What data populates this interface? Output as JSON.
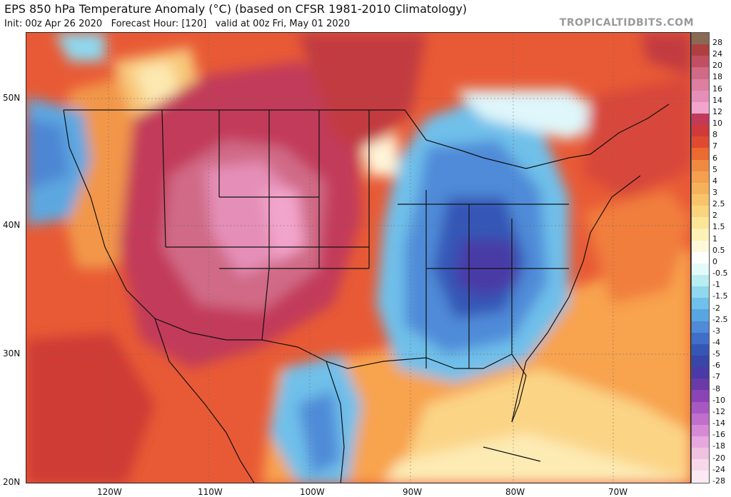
{
  "header": {
    "title": "EPS 850 hPa Temperature Anomaly (°C) (based on CFSR 1981-2010 Climatology)",
    "init": "Init: 00z Apr 26 2020",
    "forecast_hour": "Forecast Hour: [120]",
    "valid": "valid at 00z Fri, May 01 2020",
    "brand": "TROPICALTIDBITS.COM"
  },
  "map": {
    "lat_labels": [
      "50N",
      "40N",
      "30N",
      "20N"
    ],
    "lon_labels": [
      "120W",
      "110W",
      "100W",
      "90W",
      "80W",
      "70W"
    ],
    "regions": {
      "west_warm_core": "warm anomaly",
      "east_cold_core": "cold anomaly"
    }
  },
  "colorbar": {
    "labels": [
      "28",
      "24",
      "20",
      "18",
      "16",
      "14",
      "12",
      "10",
      "8",
      "7",
      "6",
      "5",
      "4",
      "3",
      "2.5",
      "2",
      "1.5",
      "1",
      "0.5",
      "0",
      "-0.5",
      "-1",
      "-1.5",
      "-2",
      "-2.5",
      "-3",
      "-4",
      "-5",
      "-6",
      "-7",
      "-8",
      "-10",
      "-12",
      "-14",
      "-16",
      "-18",
      "-20",
      "-24",
      "-28"
    ],
    "colors": [
      "#8a6a55",
      "#b04040",
      "#c24e62",
      "#d06a86",
      "#dc7fa0",
      "#e58fb8",
      "#f2a5cc",
      "#c23a5a",
      "#d13a3a",
      "#e04a30",
      "#ea6a30",
      "#f08a40",
      "#f4a050",
      "#f6b25a",
      "#f8c46a",
      "#fad57e",
      "#fce596",
      "#fdf1b6",
      "#fff9dc",
      "#ffffff",
      "#e4fafa",
      "#b8eef2",
      "#8fd8ee",
      "#6fc0ea",
      "#57a6e2",
      "#4f8bd8",
      "#3f6fc8",
      "#3656b6",
      "#3a45a8",
      "#4a3aa6",
      "#6a3aa8",
      "#8a44b4",
      "#a858c2",
      "#c070cc",
      "#d68ad6",
      "#e6a8de",
      "#f0c2e2",
      "#f7d8ea",
      "#fbe8f2"
    ]
  }
}
